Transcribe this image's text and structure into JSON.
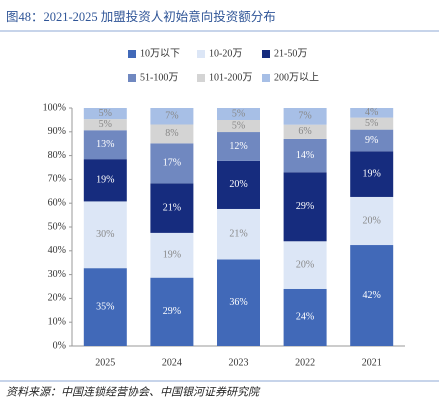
{
  "chart_data": {
    "type": "stacked_percent_bar",
    "title": "图48：2021-2025 加盟投资人初始意向投资额分布",
    "source": "资料来源：中国连锁经营协会、中国银河证券研究院",
    "categories": [
      "2025",
      "2024",
      "2023",
      "2022",
      "2021"
    ],
    "series": [
      {
        "name": "10万以下",
        "color": "#4169b8",
        "values": [
          35,
          29,
          36,
          24,
          42
        ],
        "value_labels": [
          "35%",
          "29%",
          "36%",
          "24%",
          "42%"
        ]
      },
      {
        "name": "10-20万",
        "color": "#dce6f6",
        "values": [
          30,
          19,
          21,
          20,
          20
        ],
        "value_labels": [
          "30%",
          "19%",
          "21%",
          "20%",
          "20%"
        ]
      },
      {
        "name": "21-50万",
        "color": "#162c7e",
        "values": [
          19,
          21,
          20,
          29,
          19
        ],
        "value_labels": [
          "19%",
          "21%",
          "20%",
          "29%",
          "19%"
        ]
      },
      {
        "name": "51-100万",
        "color": "#7088c0",
        "values": [
          13,
          17,
          12,
          14,
          9
        ],
        "value_labels": [
          "13%",
          "17%",
          "12%",
          "14%",
          "9%"
        ]
      },
      {
        "name": "101-200万",
        "color": "#d4d4d4",
        "values": [
          5,
          8,
          5,
          6,
          5
        ],
        "value_labels": [
          "5%",
          "8%",
          "5%",
          "6%",
          "5%"
        ]
      },
      {
        "name": "200万以上",
        "color": "#a7bfe6",
        "values": [
          5,
          7,
          5,
          7,
          4
        ],
        "value_labels": [
          "5%",
          "7%",
          "5%",
          "7%",
          "4%"
        ]
      }
    ],
    "ylim": [
      0,
      100
    ],
    "yticks": [
      {
        "value": 0,
        "label": "0%"
      },
      {
        "value": 10,
        "label": "10%"
      },
      {
        "value": 20,
        "label": "20%"
      },
      {
        "value": 30,
        "label": "30%"
      },
      {
        "value": 40,
        "label": "40%"
      },
      {
        "value": 50,
        "label": "50%"
      },
      {
        "value": 60,
        "label": "60%"
      },
      {
        "value": 70,
        "label": "70%"
      },
      {
        "value": 80,
        "label": "80%"
      },
      {
        "value": 90,
        "label": "90%"
      },
      {
        "value": 100,
        "label": "100%"
      }
    ]
  }
}
